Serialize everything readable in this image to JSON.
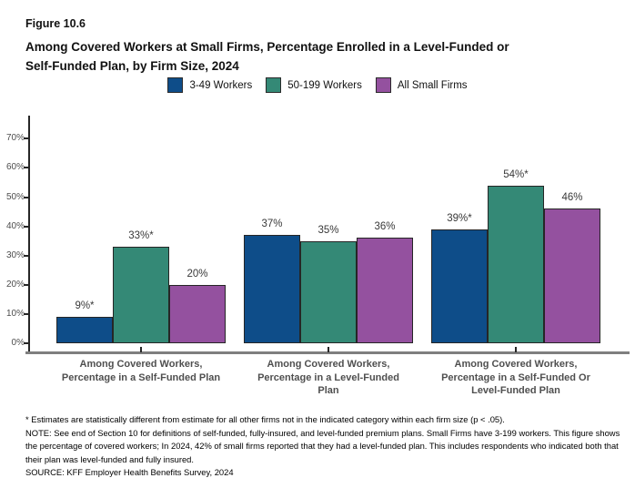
{
  "header": {
    "figure_label": "Figure 10.6",
    "title_lines": [
      "Among Covered Workers at Small Firms, Percentage Enrolled in a Level-Funded or",
      "Self-Funded Plan, by Firm Size, 2024"
    ]
  },
  "chart_data": {
    "type": "bar",
    "title": "Among Covered Workers at Small Firms, Percentage Enrolled in a Level-Funded or Self-Funded Plan, by Firm Size, 2024",
    "categories": [
      "Among Covered Workers,\nPercentage in a Self-Funded Plan",
      "Among Covered Workers,\nPercentage in a Level-Funded\nPlan",
      "Among Covered Workers,\nPercentage in a Self-Funded Or\nLevel-Funded Plan"
    ],
    "series": [
      {
        "name": "3-49 Workers",
        "color": "#0e4d89",
        "values": [
          9,
          37,
          39
        ],
        "labels": [
          "9%*",
          "37%",
          "39%*"
        ]
      },
      {
        "name": "50-199 Workers",
        "color": "#348976",
        "values": [
          33,
          35,
          54
        ],
        "labels": [
          "33%*",
          "35%",
          "54%*"
        ]
      },
      {
        "name": "All Small Firms",
        "color": "#94519f",
        "values": [
          20,
          36,
          46
        ],
        "labels": [
          "20%",
          "36%",
          "46%"
        ]
      }
    ],
    "yticks": [
      0,
      10,
      20,
      30,
      40,
      50,
      60,
      70
    ],
    "ytick_labels": [
      "0%",
      "10%",
      "20%",
      "30%",
      "40%",
      "50%",
      "60%",
      "70%"
    ],
    "ylim": [
      0,
      77
    ],
    "ylabel": "",
    "xlabel": "",
    "grid": false,
    "legend_position": "top"
  },
  "footnotes": {
    "asterisk": "* Estimates are statistically different from estimate for all other firms not in the indicated category within each firm size (p < .05).",
    "note": "NOTE: See end of Section 10 for definitions of self-funded, fully-insured, and level-funded premium plans. Small Firms have 3-199 workers. This figure shows the percentage of covered workers; In 2024, 42% of small firms reported that they had a level-funded plan. This includes respondents who indicated both that their plan was level-funded and fully insured.",
    "source": "SOURCE: KFF Employer Health Benefits Survey, 2024"
  }
}
